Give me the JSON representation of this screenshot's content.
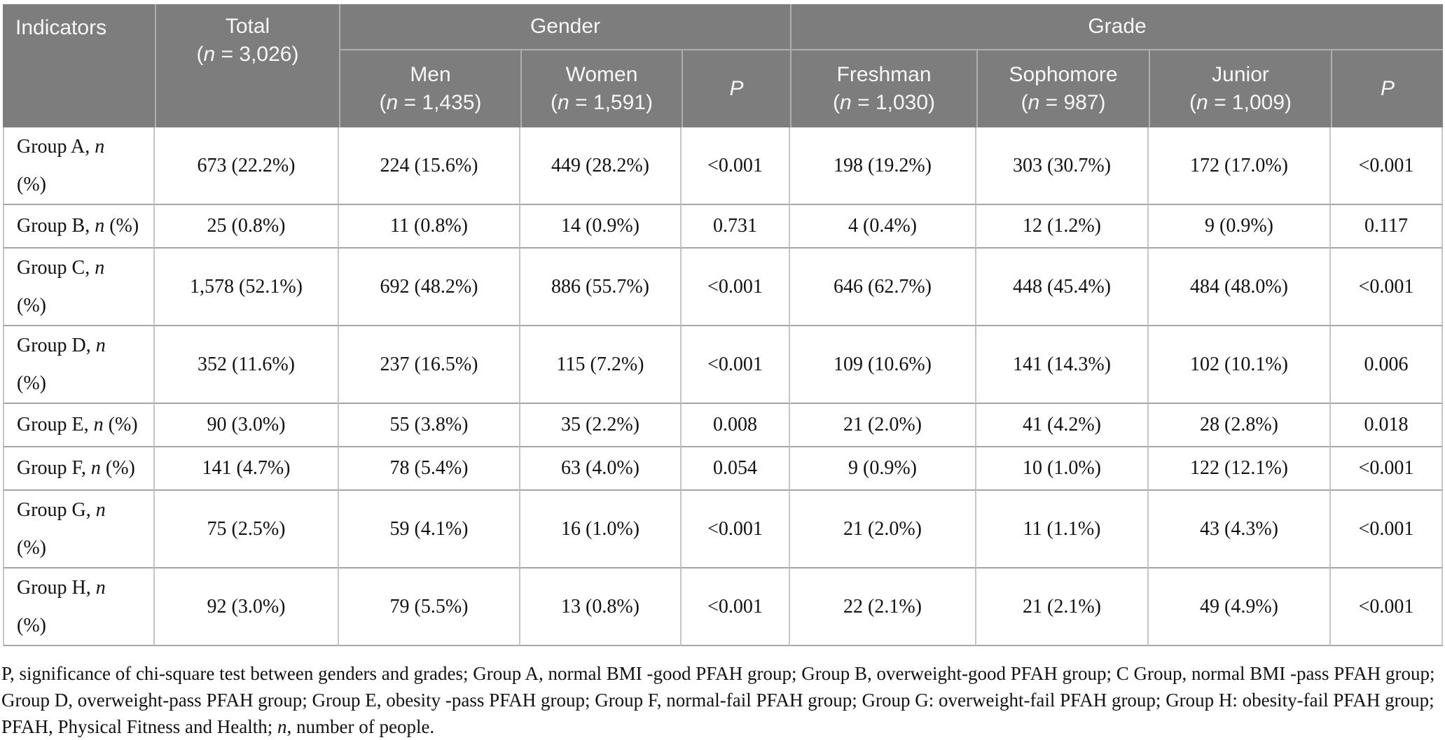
{
  "table": {
    "header": {
      "indicators": "Indicators",
      "total": [
        "Total",
        "(n = 3,026)"
      ],
      "groups": [
        "Gender",
        "Grade"
      ],
      "subs": [
        [
          "Men",
          "(n = 1,435)"
        ],
        [
          "Women",
          "(n = 1,591)"
        ],
        [
          "P"
        ],
        [
          "Freshman",
          "(n = 1,030)"
        ],
        [
          "Sophomore",
          "(n = 987)"
        ],
        [
          "Junior",
          "(n = 1,009)"
        ],
        [
          "P"
        ]
      ]
    },
    "rows": [
      {
        "label": [
          "Group A, n",
          "(%)"
        ],
        "cells": [
          "673 (22.2%)",
          "224 (15.6%)",
          "449 (28.2%)",
          "<0.001",
          "198 (19.2%)",
          "303 (30.7%)",
          "172 (17.0%)",
          "<0.001"
        ]
      },
      {
        "label": [
          "Group B, n (%)"
        ],
        "cells": [
          "25 (0.8%)",
          "11 (0.8%)",
          "14 (0.9%)",
          "0.731",
          "4 (0.4%)",
          "12 (1.2%)",
          "9 (0.9%)",
          "0.117"
        ]
      },
      {
        "label": [
          "Group C, n",
          "(%)"
        ],
        "cells": [
          "1,578 (52.1%)",
          "692 (48.2%)",
          "886 (55.7%)",
          "<0.001",
          "646 (62.7%)",
          "448 (45.4%)",
          "484 (48.0%)",
          "<0.001"
        ]
      },
      {
        "label": [
          "Group D, n",
          "(%)"
        ],
        "cells": [
          "352 (11.6%)",
          "237 (16.5%)",
          "115 (7.2%)",
          "<0.001",
          "109 (10.6%)",
          "141 (14.3%)",
          "102 (10.1%)",
          "0.006"
        ]
      },
      {
        "label": [
          "Group E, n (%)"
        ],
        "cells": [
          "90 (3.0%)",
          "55 (3.8%)",
          "35 (2.2%)",
          "0.008",
          "21 (2.0%)",
          "41 (4.2%)",
          "28 (2.8%)",
          "0.018"
        ]
      },
      {
        "label": [
          "Group F, n (%)"
        ],
        "cells": [
          "141 (4.7%)",
          "78 (5.4%)",
          "63 (4.0%)",
          "0.054",
          "9 (0.9%)",
          "10 (1.0%)",
          "122 (12.1%)",
          "<0.001"
        ]
      },
      {
        "label": [
          "Group G, n",
          "(%)"
        ],
        "cells": [
          "75 (2.5%)",
          "59 (4.1%)",
          "16 (1.0%)",
          "<0.001",
          "21 (2.0%)",
          "11 (1.1%)",
          "43 (4.3%)",
          "<0.001"
        ]
      },
      {
        "label": [
          "Group H, n",
          "(%)"
        ],
        "cells": [
          "92 (3.0%)",
          "79 (5.5%)",
          "13 (0.8%)",
          "<0.001",
          "22 (2.1%)",
          "21 (2.1%)",
          "49 (4.9%)",
          "<0.001"
        ]
      }
    ]
  },
  "footnote": {
    "lines": [
      "P, significance of chi-square test between genders and grades; Group A, normal BMI -good PFAH group; Group B, overweight-good PFAH group; C Group, normal BMI -pass PFAH group;",
      "Group D, overweight-pass PFAH group; Group E, obesity -pass PFAH group; Group F, normal-fail PFAH group; Group G: overweight-fail PFAH group; Group H: obesity-fail PFAH group;",
      "PFAH, Physical Fitness and Health; n, number of people."
    ]
  },
  "colors": {
    "header_bg": "#7d7d7d",
    "header_text": "#f7f7f7",
    "body_text": "#121212",
    "grid_vertical": "#c6c6c6",
    "grid_horizontal": "#a6a6a6"
  }
}
